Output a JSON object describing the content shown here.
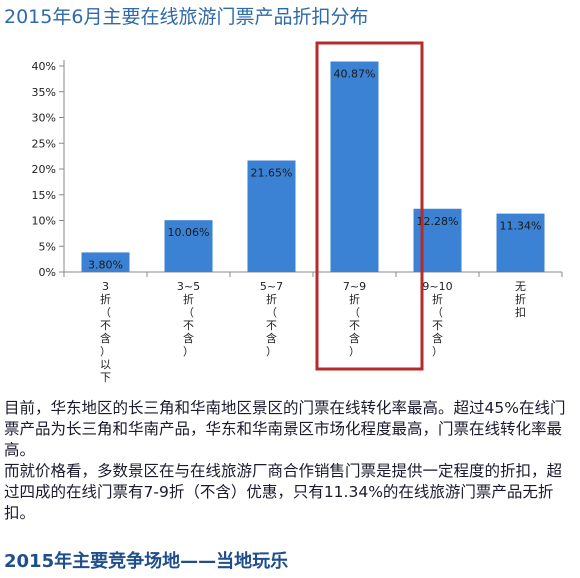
{
  "header": {
    "title": "2015年6月主要在线旅游门票产品折扣分布"
  },
  "chart_data": {
    "type": "bar",
    "categories": [
      "3折（不含）以下",
      "3~5折（不含）",
      "5~7折（不含）",
      "7~9折（不含）",
      "9~10折（不含）",
      "无折扣"
    ],
    "category_lines": [
      [
        "3",
        "折",
        "（",
        "不",
        "含",
        "）",
        "以",
        "下"
      ],
      [
        "3~5",
        "折",
        "（",
        "不",
        "含",
        "）"
      ],
      [
        "5~7",
        "折",
        "（",
        "不",
        "含",
        "）"
      ],
      [
        "7~9",
        "折",
        "（",
        "不",
        "含",
        "）"
      ],
      [
        "9~10",
        "折",
        "（",
        "不",
        "含",
        "）"
      ],
      [
        "无",
        "折",
        "扣"
      ]
    ],
    "values": [
      3.8,
      10.06,
      21.65,
      40.87,
      12.28,
      11.34
    ],
    "value_labels": [
      "3.80%",
      "10.06%",
      "21.65%",
      "40.87%",
      "12.28%",
      "11.34%"
    ],
    "y_ticks": [
      0,
      5,
      10,
      15,
      20,
      25,
      30,
      35,
      40
    ],
    "y_tick_labels": [
      "0%",
      "5%",
      "10%",
      "15%",
      "20%",
      "25%",
      "30%",
      "35%",
      "40%"
    ],
    "ylim": [
      0,
      40
    ],
    "highlight_index": 3,
    "bar_color": "#3b82d4",
    "highlight_color": "#b52a2a",
    "grid": false
  },
  "body": {
    "paragraphs": [
      "目前，华东地区的长三角和华南地区景区的门票在线转化率最高。超过45%在线门票产品为长三角和华南产品，华东和华南景区市场化程度最高，门票在线转化率最高。",
      "而就价格看，多数景区在与在线旅游厂商合作销售门票是提供一定程度的折扣，超过四成的在线门票有7-9折（不含）优惠，只有11.34%的在线旅游门票产品无折扣。"
    ]
  },
  "footer": {
    "title": "2015年主要竞争场地——当地玩乐"
  }
}
